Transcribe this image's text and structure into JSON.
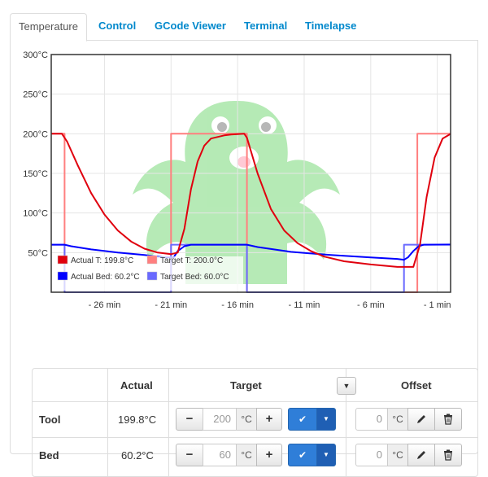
{
  "tabs": [
    {
      "label": "Temperature"
    },
    {
      "label": "Control"
    },
    {
      "label": "GCode Viewer"
    },
    {
      "label": "Terminal"
    },
    {
      "label": "Timelapse"
    }
  ],
  "chart_data": {
    "type": "line",
    "y_ticks": [
      "300°C",
      "250°C",
      "200°C",
      "150°C",
      "100°C",
      "50°C"
    ],
    "x_ticks": [
      "- 26 min",
      "- 21 min",
      "- 16 min",
      "- 11 min",
      "- 6 min",
      "- 1 min"
    ],
    "ylim": [
      0,
      300
    ],
    "xlim": [
      -30,
      0
    ],
    "grid": true,
    "legend_placement": "bottom-left",
    "series": [
      {
        "name": "Actual T: 199.8°C",
        "color": "#e0000e",
        "points": [
          [
            -30,
            200
          ],
          [
            -29.2,
            200
          ],
          [
            -28.8,
            190
          ],
          [
            -28,
            160
          ],
          [
            -27,
            125
          ],
          [
            -26,
            98
          ],
          [
            -25,
            78
          ],
          [
            -24,
            64
          ],
          [
            -23,
            55
          ],
          [
            -22,
            50
          ],
          [
            -21,
            48
          ],
          [
            -20.5,
            50
          ],
          [
            -20,
            80
          ],
          [
            -19.5,
            130
          ],
          [
            -19,
            165
          ],
          [
            -18.5,
            185
          ],
          [
            -18,
            194
          ],
          [
            -17,
            198
          ],
          [
            -16.5,
            199
          ],
          [
            -15.5,
            200
          ],
          [
            -15.3,
            195
          ],
          [
            -14.5,
            150
          ],
          [
            -13.5,
            105
          ],
          [
            -12.5,
            78
          ],
          [
            -11.5,
            62
          ],
          [
            -10.5,
            52
          ],
          [
            -9.5,
            45
          ],
          [
            -8,
            39
          ],
          [
            -6,
            35
          ],
          [
            -4,
            32
          ],
          [
            -2.8,
            32
          ],
          [
            -2.3,
            60
          ],
          [
            -1.8,
            120
          ],
          [
            -1.2,
            170
          ],
          [
            -0.6,
            194
          ],
          [
            0,
            199.8
          ]
        ]
      },
      {
        "name": "Target T: 200.0°C",
        "color": "#ff7f7f",
        "points": [
          [
            -30,
            200
          ],
          [
            -29,
            200
          ],
          [
            -29,
            0
          ],
          [
            -21,
            0
          ],
          [
            -21,
            200
          ],
          [
            -15.3,
            200
          ],
          [
            -15.3,
            0
          ],
          [
            -2.5,
            0
          ],
          [
            -2.5,
            200
          ],
          [
            0,
            200
          ]
        ]
      },
      {
        "name": "Actual Bed: 60.2°C",
        "color": "#0000ff",
        "points": [
          [
            -30,
            60
          ],
          [
            -29,
            60
          ],
          [
            -28.5,
            58
          ],
          [
            -27,
            54
          ],
          [
            -25,
            50
          ],
          [
            -23,
            47
          ],
          [
            -21.5,
            44
          ],
          [
            -20.8,
            44
          ],
          [
            -20.5,
            52
          ],
          [
            -20,
            58
          ],
          [
            -19.5,
            60
          ],
          [
            -15.3,
            60
          ],
          [
            -14.5,
            57
          ],
          [
            -12,
            51
          ],
          [
            -9,
            47
          ],
          [
            -6,
            44
          ],
          [
            -4,
            42
          ],
          [
            -3.5,
            41
          ],
          [
            -3.2,
            44
          ],
          [
            -2.8,
            52
          ],
          [
            -2.4,
            58
          ],
          [
            -2,
            60
          ],
          [
            0,
            60.2
          ]
        ]
      },
      {
        "name": "Target Bed: 60.0°C",
        "color": "#6a6aff",
        "points": [
          [
            -30,
            60
          ],
          [
            -29,
            60
          ],
          [
            -29,
            0
          ],
          [
            -21,
            0
          ],
          [
            -21,
            60
          ],
          [
            -15.3,
            60
          ],
          [
            -15.3,
            0
          ],
          [
            -3.5,
            0
          ],
          [
            -3.5,
            60
          ],
          [
            0,
            60
          ]
        ]
      }
    ]
  },
  "table": {
    "headers": {
      "actual": "Actual",
      "target": "Target",
      "offset": "Offset"
    },
    "rows": [
      {
        "label": "Tool",
        "actual": "199.8°C",
        "target_value": "200",
        "offset_value": "0"
      },
      {
        "label": "Bed",
        "actual": "60.2°C",
        "target_value": "60",
        "offset_value": "0"
      }
    ],
    "unit": "°C",
    "minus": "−",
    "plus": "+"
  }
}
